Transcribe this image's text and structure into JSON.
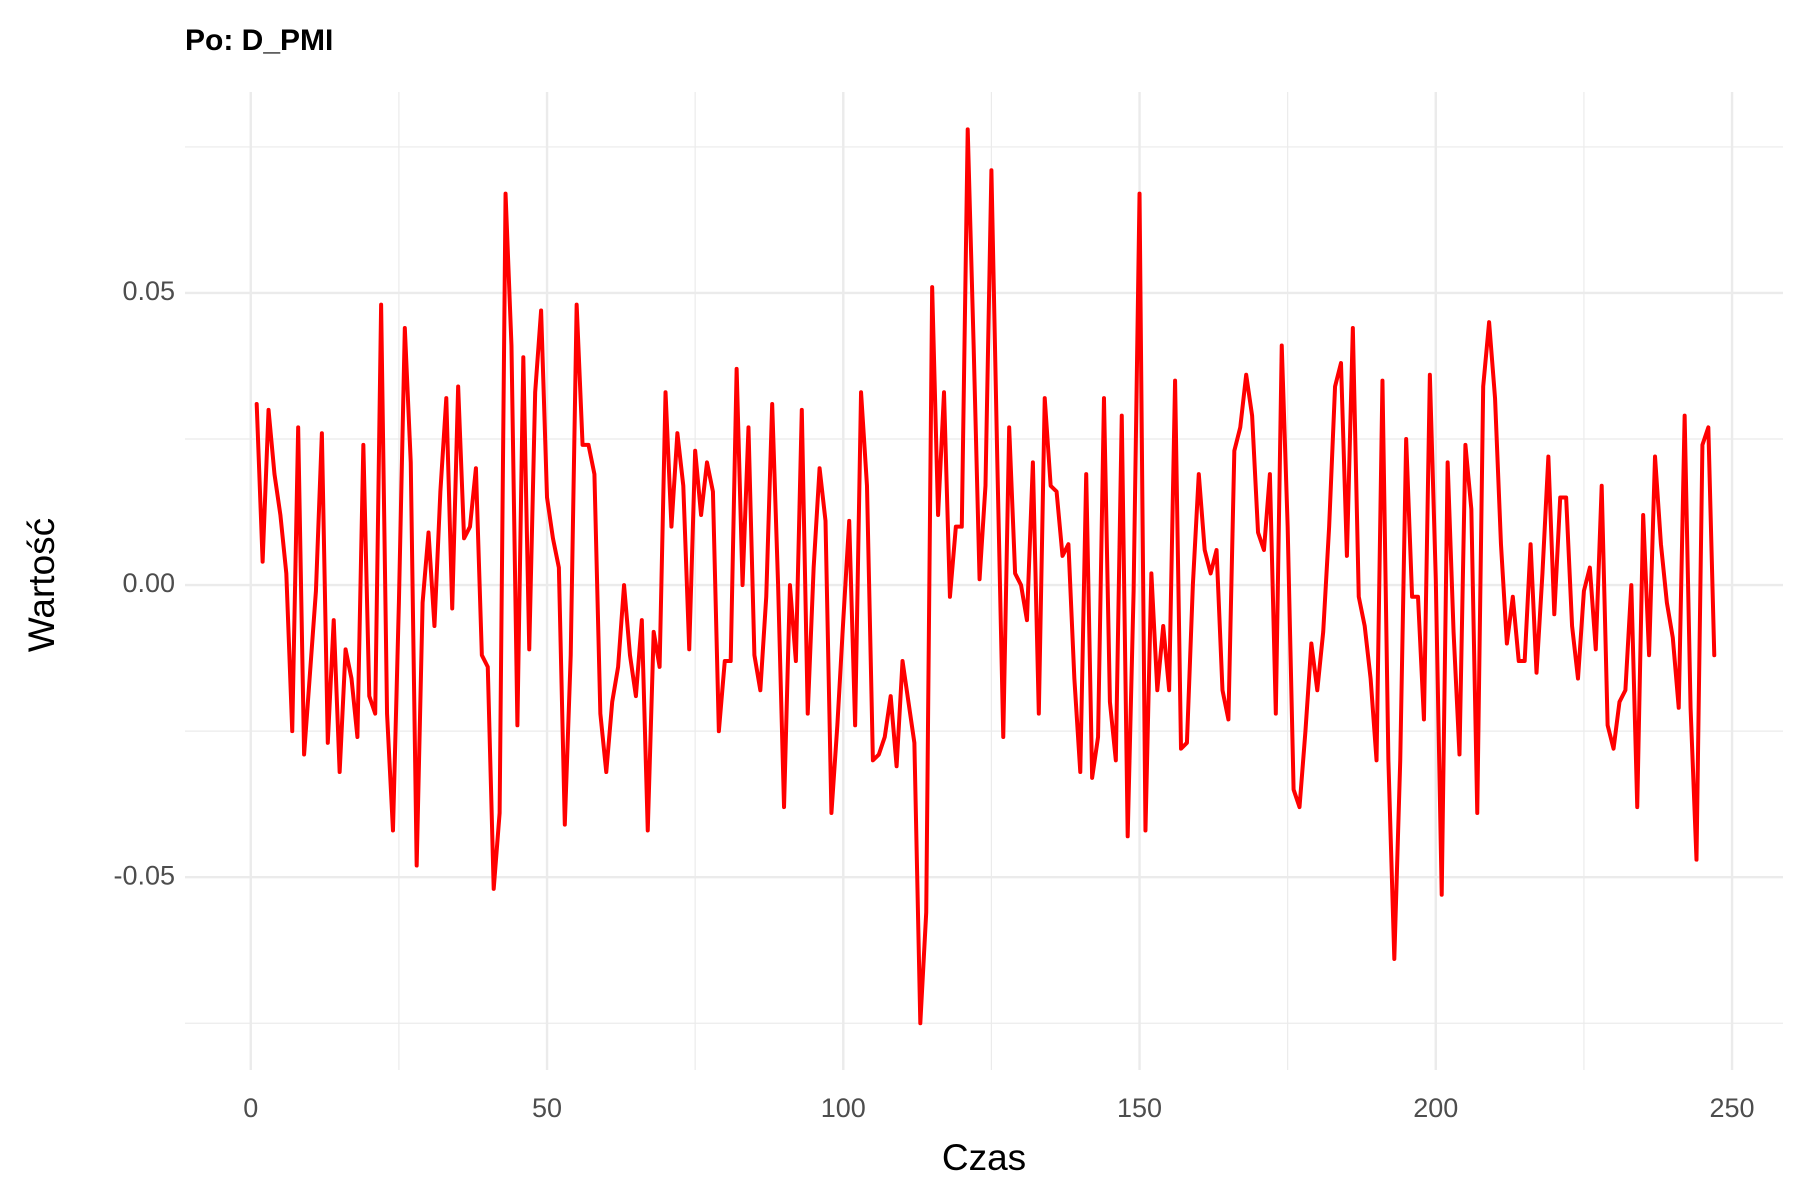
{
  "chart_data": {
    "type": "line",
    "title": "Po: D_PMI",
    "xlabel": "Czas",
    "ylabel": "Wartość",
    "x": [
      1,
      2,
      3,
      4,
      5,
      6,
      7,
      8,
      9,
      10,
      11,
      12,
      13,
      14,
      15,
      16,
      17,
      18,
      19,
      20,
      21,
      22,
      23,
      24,
      25,
      26,
      27,
      28,
      29,
      30,
      31,
      32,
      33,
      34,
      35,
      36,
      37,
      38,
      39,
      40,
      41,
      42,
      43,
      44,
      45,
      46,
      47,
      48,
      49,
      50,
      51,
      52,
      53,
      54,
      55,
      56,
      57,
      58,
      59,
      60,
      61,
      62,
      63,
      64,
      65,
      66,
      67,
      68,
      69,
      70,
      71,
      72,
      73,
      74,
      75,
      76,
      77,
      78,
      79,
      80,
      81,
      82,
      83,
      84,
      85,
      86,
      87,
      88,
      89,
      90,
      91,
      92,
      93,
      94,
      95,
      96,
      97,
      98,
      99,
      100,
      101,
      102,
      103,
      104,
      105,
      106,
      107,
      108,
      109,
      110,
      111,
      112,
      113,
      114,
      115,
      116,
      117,
      118,
      119,
      120,
      121,
      122,
      123,
      124,
      125,
      126,
      127,
      128,
      129,
      130,
      131,
      132,
      133,
      134,
      135,
      136,
      137,
      138,
      139,
      140,
      141,
      142,
      143,
      144,
      145,
      146,
      147,
      148,
      149,
      150,
      151,
      152,
      153,
      154,
      155,
      156,
      157,
      158,
      159,
      160,
      161,
      162,
      163,
      164,
      165,
      166,
      167,
      168,
      169,
      170,
      171,
      172,
      173,
      174,
      175,
      176,
      177,
      178,
      179,
      180,
      181,
      182,
      183,
      184,
      185,
      186,
      187,
      188,
      189,
      190,
      191,
      192,
      193,
      194,
      195,
      196,
      197,
      198,
      199,
      200,
      201,
      202,
      203,
      204,
      205,
      206,
      207,
      208,
      209,
      210,
      211,
      212,
      213,
      214,
      215,
      216,
      217,
      218,
      219,
      220,
      221,
      222,
      223,
      224,
      225,
      226,
      227,
      228,
      229,
      230,
      231,
      232,
      233,
      234,
      235,
      236,
      237,
      238,
      239,
      240,
      241,
      242,
      243,
      244,
      245,
      246,
      247
    ],
    "series": [
      {
        "name": "D_PMI",
        "color": "#ff0000",
        "values": [
          0.031,
          0.004,
          0.03,
          0.019,
          0.012,
          0.002,
          -0.025,
          0.027,
          -0.029,
          -0.015,
          -0.001,
          0.026,
          -0.027,
          -0.006,
          -0.032,
          -0.011,
          -0.016,
          -0.026,
          0.024,
          -0.019,
          -0.022,
          0.048,
          -0.022,
          -0.042,
          -0.003,
          0.044,
          0.021,
          -0.048,
          -0.003,
          0.009,
          -0.007,
          0.016,
          0.032,
          -0.004,
          0.034,
          0.008,
          0.01,
          0.02,
          -0.012,
          -0.014,
          -0.052,
          -0.039,
          0.067,
          0.041,
          -0.024,
          0.039,
          -0.011,
          0.033,
          0.047,
          0.015,
          0.008,
          0.003,
          -0.041,
          -0.012,
          0.048,
          0.024,
          0.024,
          0.019,
          -0.022,
          -0.032,
          -0.02,
          -0.014,
          0.0,
          -0.012,
          -0.019,
          -0.006,
          -0.042,
          -0.008,
          -0.014,
          0.033,
          0.01,
          0.026,
          0.017,
          -0.011,
          0.023,
          0.012,
          0.021,
          0.016,
          -0.025,
          -0.013,
          -0.013,
          0.037,
          0.0,
          0.027,
          -0.012,
          -0.018,
          -0.002,
          0.031,
          0.0,
          -0.038,
          0.0,
          -0.013,
          0.03,
          -0.022,
          0.003,
          0.02,
          0.011,
          -0.039,
          -0.024,
          -0.006,
          0.011,
          -0.024,
          0.033,
          0.017,
          -0.03,
          -0.029,
          -0.026,
          -0.019,
          -0.031,
          -0.013,
          -0.02,
          -0.027,
          -0.075,
          -0.056,
          0.051,
          0.012,
          0.033,
          -0.002,
          0.01,
          0.01,
          0.078,
          0.041,
          0.001,
          0.017,
          0.071,
          0.021,
          -0.026,
          0.027,
          0.002,
          0.0,
          -0.006,
          0.021,
          -0.022,
          0.032,
          0.017,
          0.016,
          0.005,
          0.007,
          -0.016,
          -0.032,
          0.019,
          -0.033,
          -0.026,
          0.032,
          -0.02,
          -0.03,
          0.029,
          -0.043,
          -0.001,
          0.067,
          -0.042,
          0.002,
          -0.018,
          -0.007,
          -0.018,
          0.035,
          -0.028,
          -0.027,
          0.0,
          0.019,
          0.006,
          0.002,
          0.006,
          -0.018,
          -0.023,
          0.023,
          0.027,
          0.036,
          0.029,
          0.009,
          0.006,
          0.019,
          -0.022,
          0.041,
          0.01,
          -0.035,
          -0.038,
          -0.025,
          -0.01,
          -0.018,
          -0.008,
          0.01,
          0.034,
          0.038,
          0.005,
          0.044,
          -0.002,
          -0.007,
          -0.016,
          -0.03,
          0.035,
          -0.03,
          -0.064,
          -0.03,
          0.025,
          -0.002,
          -0.002,
          -0.023,
          0.036,
          0.001,
          -0.053,
          0.021,
          -0.008,
          -0.029,
          0.024,
          0.013,
          -0.039,
          0.034,
          0.045,
          0.032,
          0.007,
          -0.01,
          -0.002,
          -0.013,
          -0.013,
          0.007,
          -0.015,
          0.002,
          0.022,
          -0.005,
          0.015,
          0.015,
          -0.007,
          -0.016,
          -0.001,
          0.003,
          -0.011,
          0.017,
          -0.024,
          -0.028,
          -0.02,
          -0.018,
          0.0,
          -0.038,
          0.012,
          -0.012,
          0.022,
          0.007,
          -0.003,
          -0.009,
          -0.021,
          0.029,
          -0.021,
          -0.047,
          0.024,
          0.027,
          -0.012
        ]
      }
    ],
    "xlim": [
      -11.1,
      258.6
    ],
    "ylim": [
      -0.083,
      0.0844
    ],
    "xticks": [
      0,
      50,
      100,
      150,
      200,
      250
    ],
    "yticks": [
      -0.05,
      {
        "value": 0,
        "label": "0.00"
      },
      0.05
    ],
    "x_minor_grid": [
      25,
      75,
      125,
      175,
      225
    ],
    "y_minor_grid": [
      -0.075,
      -0.025,
      0.025,
      0.075
    ],
    "grid": true
  }
}
